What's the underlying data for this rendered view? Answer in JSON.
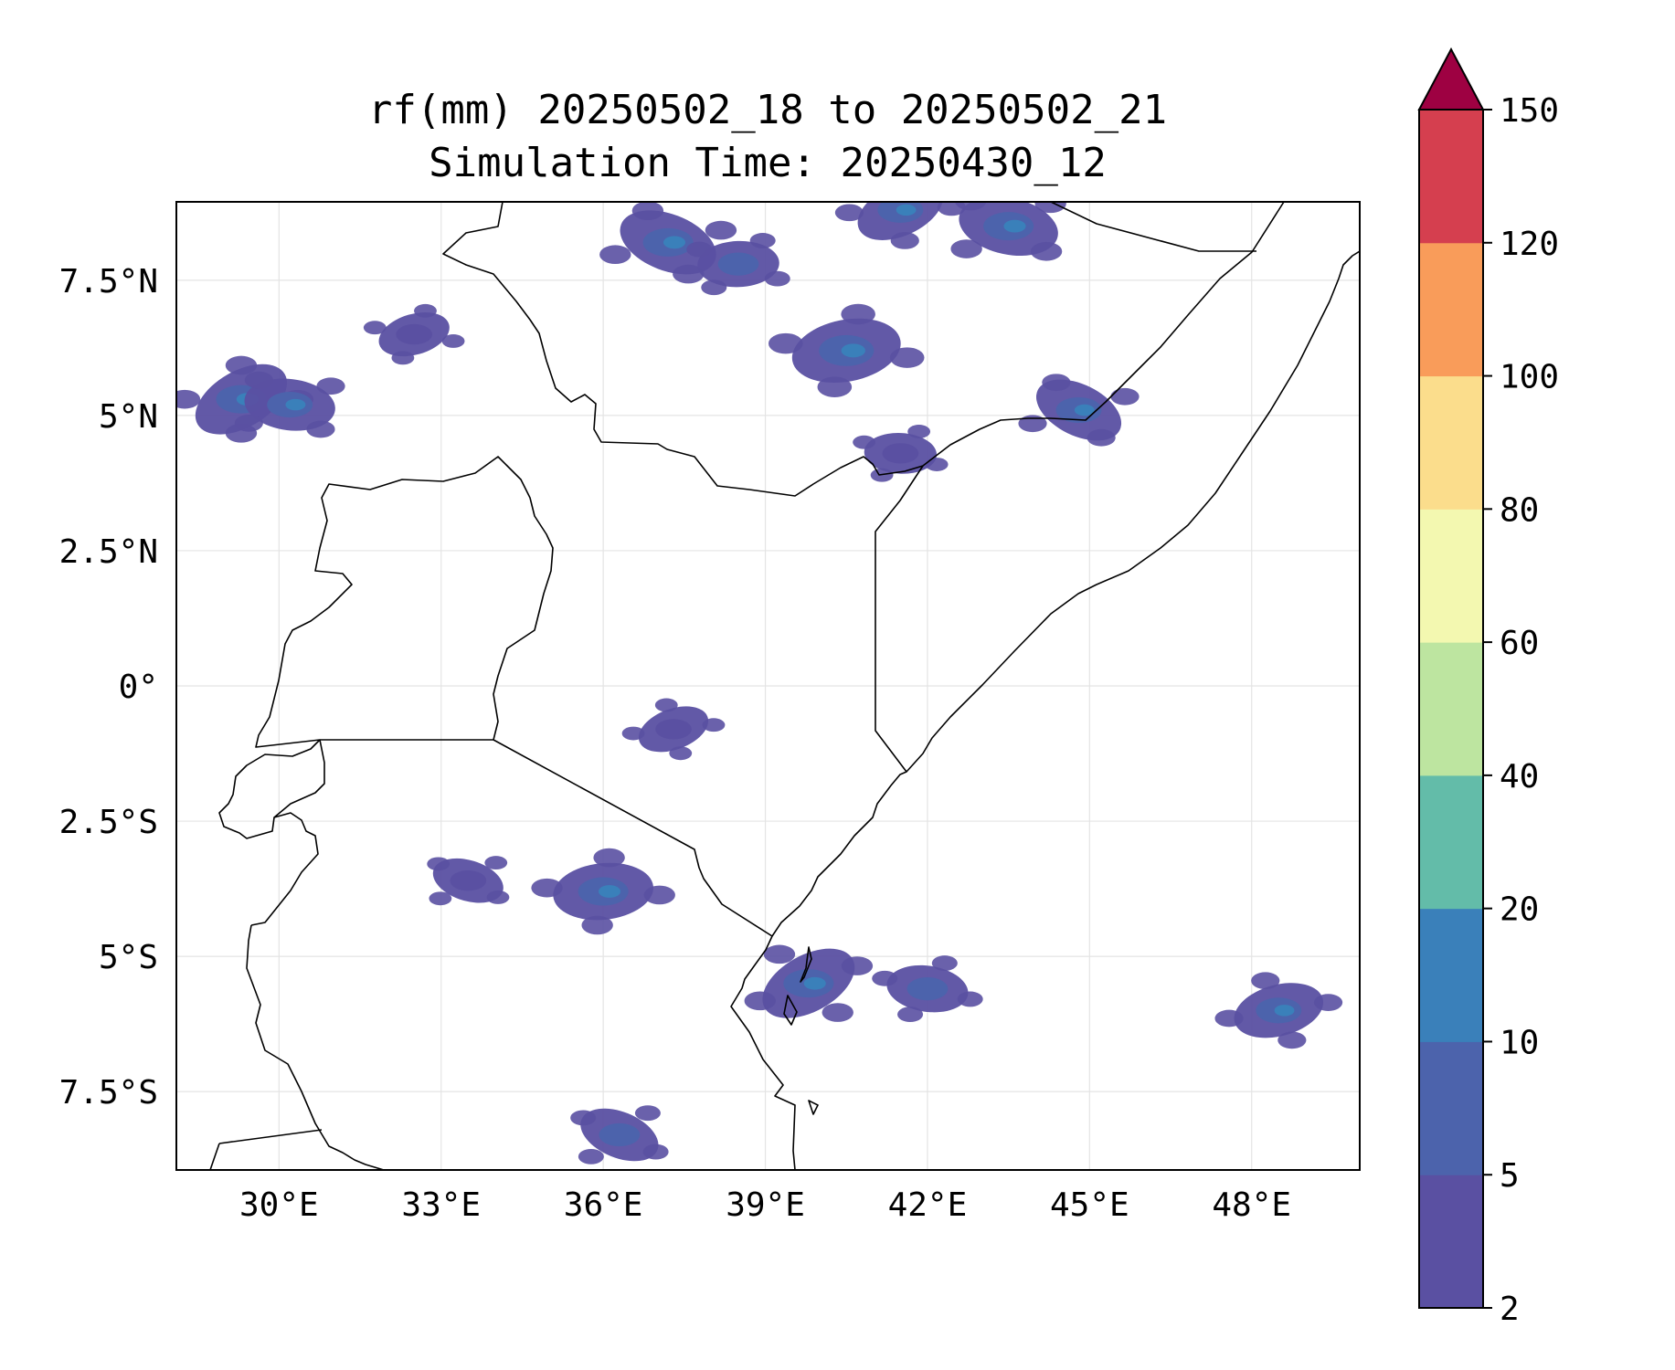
{
  "figure": {
    "title": "rf(mm) 20250502_18 to 20250502_21",
    "subtitle": "Simulation Time: 20250430_12"
  },
  "map": {
    "extent": {
      "lon_min": 28.1,
      "lon_max": 50.0,
      "lat_min": -8.95,
      "lat_max": 8.95
    },
    "lon_ticks": [
      {
        "value": 30,
        "label": "30°E"
      },
      {
        "value": 33,
        "label": "33°E"
      },
      {
        "value": 36,
        "label": "36°E"
      },
      {
        "value": 39,
        "label": "39°E"
      },
      {
        "value": 42,
        "label": "42°E"
      },
      {
        "value": 45,
        "label": "45°E"
      },
      {
        "value": 48,
        "label": "48°E"
      }
    ],
    "lat_ticks": [
      {
        "value": 7.5,
        "label": "7.5°N"
      },
      {
        "value": 5,
        "label": "5°N"
      },
      {
        "value": 2.5,
        "label": "2.5°N"
      },
      {
        "value": 0,
        "label": "0°"
      },
      {
        "value": -2.5,
        "label": "2.5°S"
      },
      {
        "value": -5,
        "label": "5°S"
      },
      {
        "value": -7.5,
        "label": "7.5°S"
      }
    ],
    "gridlines": true
  },
  "colorbar": {
    "levels": [
      "2",
      "5",
      "10",
      "20",
      "40",
      "60",
      "80",
      "100",
      "120",
      "150"
    ],
    "colors": [
      "#5a50a2",
      "#4c63ac",
      "#3a80ba",
      "#63bca9",
      "#bde5a0",
      "#f3f8b0",
      "#fbdd8c",
      "#f99c5a",
      "#d53f4f"
    ],
    "extend_color": "#9e0142",
    "extend": "max"
  },
  "chart_data": {
    "type": "heatmap",
    "title": "rf(mm) 20250502_18 to 20250502_21",
    "subtitle": "Simulation Time: 20250430_12",
    "units": "mm",
    "xlim": [
      28.1,
      50.0
    ],
    "ylim": [
      -8.95,
      8.95
    ],
    "rain_areas": [
      {
        "lon": 29.3,
        "lat": 5.3,
        "value": 7
      },
      {
        "lon": 30.2,
        "lat": 5.2,
        "value": 6
      },
      {
        "lon": 32.5,
        "lat": 6.5,
        "value": 4
      },
      {
        "lon": 37.2,
        "lat": 8.2,
        "value": 7
      },
      {
        "lon": 38.5,
        "lat": 7.8,
        "value": 5
      },
      {
        "lon": 41.5,
        "lat": 8.8,
        "value": 6
      },
      {
        "lon": 43.5,
        "lat": 8.5,
        "value": 7
      },
      {
        "lon": 40.5,
        "lat": 6.2,
        "value": 8
      },
      {
        "lon": 44.8,
        "lat": 5.1,
        "value": 6
      },
      {
        "lon": 41.5,
        "lat": 4.3,
        "value": 4
      },
      {
        "lon": 37.3,
        "lat": -0.8,
        "value": 4
      },
      {
        "lon": 33.5,
        "lat": -3.6,
        "value": 4
      },
      {
        "lon": 36.0,
        "lat": -3.8,
        "value": 7
      },
      {
        "lon": 39.8,
        "lat": -5.5,
        "value": 7
      },
      {
        "lon": 42.0,
        "lat": -5.6,
        "value": 5
      },
      {
        "lon": 48.5,
        "lat": -6.0,
        "value": 6
      },
      {
        "lon": 36.3,
        "lat": -8.3,
        "value": 5
      }
    ]
  }
}
